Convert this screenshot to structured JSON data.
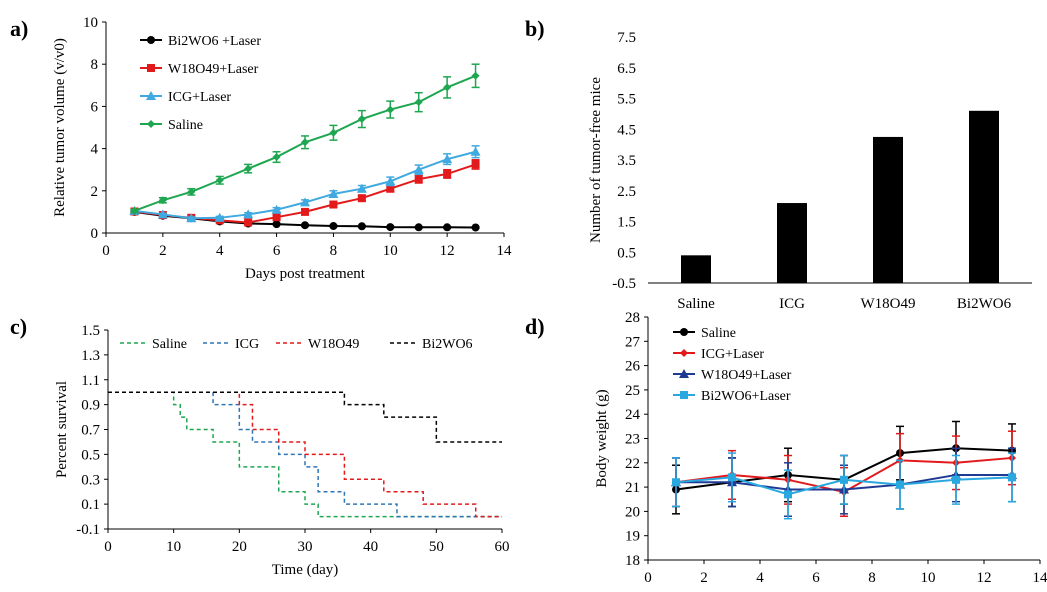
{
  "chart_data": [
    {
      "panel_label": "a)",
      "type": "line",
      "xlabel": "Days post treatment",
      "ylabel": "Relative tumor volume (v/v0)",
      "xlim": [
        0,
        14
      ],
      "ylim": [
        0,
        10
      ],
      "xticks": [
        0,
        2,
        4,
        6,
        8,
        10,
        12,
        14
      ],
      "yticks": [
        0,
        2,
        4,
        6,
        8,
        10
      ],
      "grid": false,
      "legend_position": "top-left",
      "x": [
        1,
        2,
        3,
        4,
        5,
        6,
        7,
        8,
        9,
        10,
        11,
        12,
        13
      ],
      "series": [
        {
          "name": "Bi2WO6 +Laser",
          "color": "#000000",
          "marker": "circle",
          "values": [
            1.0,
            0.82,
            0.7,
            0.55,
            0.45,
            0.42,
            0.37,
            0.33,
            0.32,
            0.28,
            0.27,
            0.27,
            0.26
          ],
          "errors": [
            0.03,
            0.03,
            0.03,
            0.03,
            0.03,
            0.03,
            0.03,
            0.03,
            0.03,
            0.03,
            0.03,
            0.03,
            0.03
          ]
        },
        {
          "name": "W18O49+Laser",
          "color": "#e31a1c",
          "marker": "square",
          "values": [
            1.02,
            0.85,
            0.72,
            0.6,
            0.5,
            0.75,
            1.0,
            1.35,
            1.65,
            2.1,
            2.55,
            2.8,
            3.25
          ],
          "errors": [
            0.05,
            0.05,
            0.06,
            0.06,
            0.07,
            0.08,
            0.1,
            0.12,
            0.12,
            0.15,
            0.18,
            0.2,
            0.22
          ]
        },
        {
          "name": "ICG+Laser",
          "color": "#3fa9e0",
          "marker": "triangle",
          "values": [
            1.05,
            0.88,
            0.7,
            0.72,
            0.88,
            1.1,
            1.45,
            1.85,
            2.1,
            2.45,
            3.0,
            3.5,
            3.85
          ],
          "errors": [
            0.05,
            0.05,
            0.06,
            0.07,
            0.08,
            0.1,
            0.12,
            0.15,
            0.15,
            0.2,
            0.22,
            0.25,
            0.28
          ]
        },
        {
          "name": "Saline",
          "color": "#1ea650",
          "marker": "diamond",
          "values": [
            1.05,
            1.55,
            1.95,
            2.5,
            3.05,
            3.6,
            4.3,
            4.75,
            5.4,
            5.85,
            6.2,
            6.9,
            7.45
          ],
          "errors": [
            0.08,
            0.12,
            0.15,
            0.18,
            0.2,
            0.25,
            0.3,
            0.35,
            0.4,
            0.4,
            0.45,
            0.5,
            0.55
          ]
        }
      ]
    },
    {
      "panel_label": "b)",
      "type": "bar",
      "xlabel": "",
      "ylabel": "Number of tumor-free mice",
      "ylim": [
        -0.5,
        7.5
      ],
      "yticks": [
        -0.5,
        0.5,
        1.5,
        2.5,
        3.5,
        4.5,
        5.5,
        6.5,
        7.5
      ],
      "categories": [
        "Saline",
        "ICG",
        "W18O49",
        "Bi2WO6"
      ],
      "values": [
        0.4,
        2.1,
        4.25,
        5.1
      ],
      "bar_color": "#000000",
      "grid": false
    },
    {
      "panel_label": "c)",
      "type": "line",
      "style": "step",
      "xlabel": "Time (day)",
      "ylabel": "Percent survival",
      "xlim": [
        0,
        60
      ],
      "ylim": [
        -0.1,
        1.5
      ],
      "xticks": [
        0,
        10,
        20,
        30,
        40,
        50,
        60
      ],
      "yticks": [
        -0.1,
        0.1,
        0.3,
        0.5,
        0.7,
        0.9,
        1.1,
        1.3,
        1.5
      ],
      "grid": false,
      "legend_position": "top",
      "series": [
        {
          "name": "Saline",
          "color": "#1ea650",
          "dash": "dashed",
          "x": [
            0,
            10,
            11,
            12,
            16,
            20,
            26,
            30,
            32,
            44
          ],
          "values": [
            1.0,
            0.9,
            0.8,
            0.7,
            0.6,
            0.4,
            0.2,
            0.1,
            0.0,
            0.0
          ]
        },
        {
          "name": "ICG",
          "color": "#2e75b6",
          "dash": "dashed",
          "x": [
            0,
            16,
            20,
            22,
            26,
            30,
            32,
            36,
            44,
            56
          ],
          "values": [
            1.0,
            0.9,
            0.7,
            0.6,
            0.5,
            0.4,
            0.2,
            0.1,
            0.0,
            0.0
          ]
        },
        {
          "name": "W18O49",
          "color": "#e31a1c",
          "dash": "dashed",
          "x": [
            0,
            20,
            22,
            26,
            30,
            36,
            42,
            48,
            56,
            60
          ],
          "values": [
            1.0,
            0.9,
            0.7,
            0.6,
            0.5,
            0.3,
            0.2,
            0.1,
            0.0,
            0.0
          ]
        },
        {
          "name": "Bi2WO6",
          "color": "#000000",
          "dash": "dashed",
          "x": [
            0,
            36,
            42,
            50,
            60
          ],
          "values": [
            1.0,
            0.9,
            0.8,
            0.6,
            0.6
          ]
        }
      ]
    },
    {
      "panel_label": "d)",
      "type": "line",
      "xlabel": "Time of treatment (day)",
      "ylabel": "Body weight (g)",
      "xlim": [
        0,
        14
      ],
      "ylim": [
        18,
        28
      ],
      "xticks": [
        0,
        2,
        4,
        6,
        8,
        10,
        12,
        14
      ],
      "yticks": [
        18,
        19,
        20,
        21,
        22,
        23,
        24,
        25,
        26,
        27,
        28
      ],
      "grid": false,
      "legend_position": "top-left",
      "x": [
        1,
        3,
        5,
        7,
        9,
        11,
        13
      ],
      "series": [
        {
          "name": "Saline",
          "color": "#000000",
          "marker": "circle",
          "values": [
            20.9,
            21.2,
            21.5,
            21.3,
            22.4,
            22.6,
            22.5
          ],
          "errors": [
            1.0,
            1.0,
            1.1,
            1.0,
            1.1,
            1.1,
            1.1
          ]
        },
        {
          "name": "ICG+Laser",
          "color": "#e31a1c",
          "marker": "diamond",
          "values": [
            21.2,
            21.5,
            21.3,
            20.8,
            22.1,
            22.0,
            22.2
          ],
          "errors": [
            1.0,
            1.0,
            1.0,
            1.0,
            1.1,
            1.1,
            1.1
          ]
        },
        {
          "name": "W18O49+Laser",
          "color": "#1f3a93",
          "marker": "triangle",
          "values": [
            21.2,
            21.2,
            20.9,
            20.9,
            21.1,
            21.5,
            21.5
          ],
          "errors": [
            1.0,
            1.0,
            1.1,
            1.0,
            1.0,
            1.1,
            1.1
          ]
        },
        {
          "name": "Bi2WO6+Laser",
          "color": "#29a8e0",
          "marker": "square",
          "values": [
            21.2,
            21.4,
            20.7,
            21.3,
            21.1,
            21.3,
            21.4
          ],
          "errors": [
            1.0,
            1.0,
            1.0,
            1.0,
            1.0,
            1.0,
            1.0
          ]
        }
      ]
    }
  ]
}
